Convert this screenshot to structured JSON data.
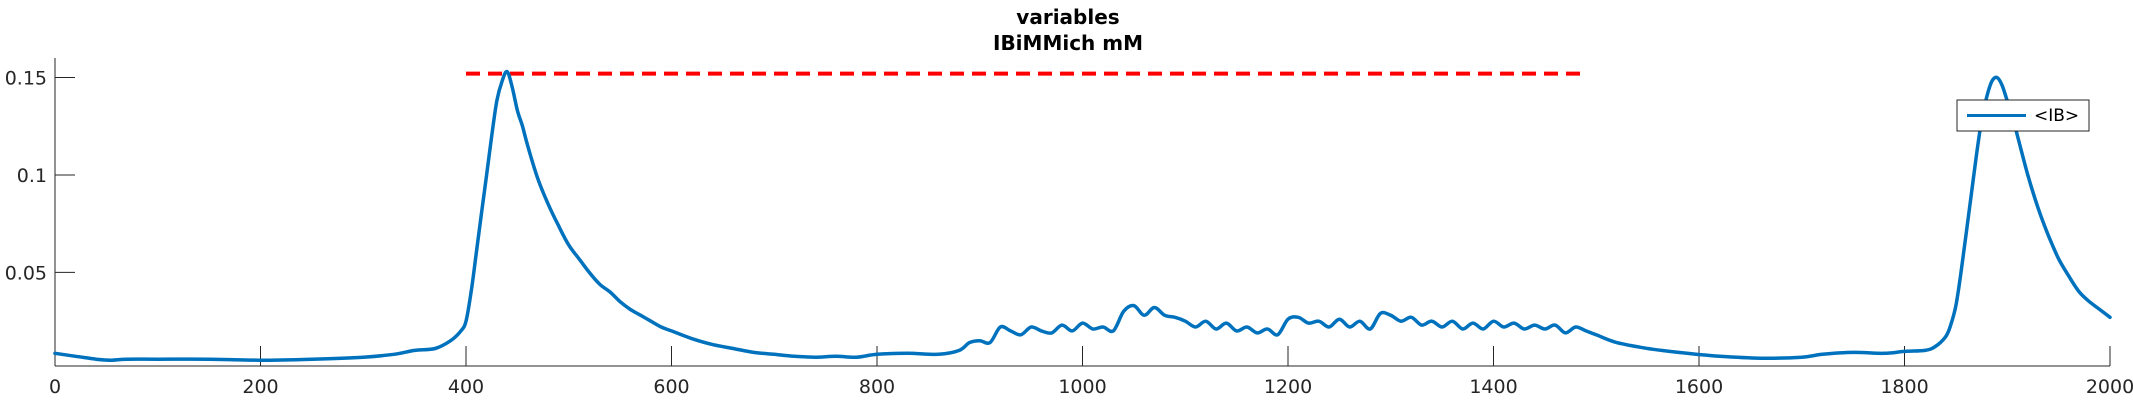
{
  "chart_data": {
    "type": "line",
    "title": [
      "variables",
      "IBiMMich mM"
    ],
    "xlabel": "",
    "ylabel": "",
    "xlim": [
      0,
      2000
    ],
    "ylim": [
      0.002,
      0.16
    ],
    "xticks": [
      0,
      200,
      400,
      600,
      800,
      1000,
      1200,
      1400,
      1600,
      1800,
      2000
    ],
    "yticks": [
      0.05,
      0.1,
      0.15
    ],
    "ytick_labels": [
      "0.05",
      "0.1",
      "0.15"
    ],
    "grid": false,
    "legend": {
      "location": "top-right",
      "entries": [
        "<IB>"
      ]
    },
    "colors": {
      "series": "#0072BD",
      "reference": "#FF0000",
      "axis": "#262626"
    },
    "reference_line": {
      "y": 0.152,
      "x": [
        400,
        1490
      ],
      "style": "dashed"
    },
    "series": [
      {
        "name": "<IB>",
        "x": [
          0,
          20,
          40,
          55,
          70,
          100,
          150,
          200,
          250,
          300,
          330,
          350,
          370,
          385,
          395,
          400,
          405,
          410,
          415,
          420,
          425,
          430,
          435,
          440,
          445,
          450,
          455,
          460,
          470,
          480,
          490,
          500,
          510,
          520,
          530,
          540,
          550,
          560,
          570,
          580,
          590,
          600,
          620,
          640,
          660,
          680,
          700,
          720,
          740,
          760,
          780,
          800,
          830,
          860,
          880,
          890,
          900,
          910,
          920,
          930,
          940,
          950,
          960,
          970,
          980,
          990,
          1000,
          1010,
          1020,
          1030,
          1040,
          1050,
          1060,
          1070,
          1080,
          1090,
          1100,
          1110,
          1120,
          1130,
          1140,
          1150,
          1160,
          1170,
          1180,
          1190,
          1200,
          1210,
          1220,
          1230,
          1240,
          1250,
          1260,
          1270,
          1280,
          1290,
          1300,
          1310,
          1320,
          1330,
          1340,
          1350,
          1360,
          1370,
          1380,
          1390,
          1400,
          1410,
          1420,
          1430,
          1440,
          1450,
          1460,
          1470,
          1480,
          1490,
          1500,
          1520,
          1550,
          1580,
          1620,
          1660,
          1700,
          1720,
          1750,
          1780,
          1800,
          1820,
          1830,
          1840,
          1845,
          1850,
          1855,
          1860,
          1865,
          1870,
          1875,
          1880,
          1885,
          1890,
          1895,
          1900,
          1905,
          1910,
          1920,
          1930,
          1940,
          1950,
          1960,
          1970,
          1980,
          1990,
          2000
        ],
        "values": [
          0.0085,
          0.007,
          0.0055,
          0.005,
          0.0055,
          0.0055,
          0.0055,
          0.005,
          0.0055,
          0.0065,
          0.008,
          0.01,
          0.011,
          0.015,
          0.02,
          0.025,
          0.04,
          0.06,
          0.08,
          0.1,
          0.12,
          0.138,
          0.148,
          0.153,
          0.145,
          0.133,
          0.125,
          0.115,
          0.098,
          0.085,
          0.074,
          0.064,
          0.057,
          0.05,
          0.044,
          0.04,
          0.035,
          0.031,
          0.028,
          0.025,
          0.022,
          0.02,
          0.016,
          0.013,
          0.011,
          0.009,
          0.008,
          0.007,
          0.0065,
          0.007,
          0.0065,
          0.008,
          0.0085,
          0.008,
          0.01,
          0.014,
          0.015,
          0.014,
          0.022,
          0.02,
          0.018,
          0.022,
          0.02,
          0.019,
          0.023,
          0.02,
          0.024,
          0.021,
          0.022,
          0.02,
          0.03,
          0.033,
          0.028,
          0.032,
          0.028,
          0.027,
          0.025,
          0.022,
          0.025,
          0.021,
          0.024,
          0.02,
          0.022,
          0.019,
          0.021,
          0.018,
          0.026,
          0.027,
          0.024,
          0.025,
          0.022,
          0.026,
          0.022,
          0.025,
          0.021,
          0.029,
          0.028,
          0.025,
          0.027,
          0.023,
          0.025,
          0.022,
          0.025,
          0.021,
          0.024,
          0.021,
          0.025,
          0.022,
          0.024,
          0.021,
          0.023,
          0.021,
          0.023,
          0.019,
          0.022,
          0.02,
          0.018,
          0.014,
          0.011,
          0.009,
          0.007,
          0.006,
          0.0065,
          0.008,
          0.009,
          0.0085,
          0.0095,
          0.01,
          0.012,
          0.017,
          0.023,
          0.033,
          0.05,
          0.07,
          0.09,
          0.11,
          0.128,
          0.14,
          0.148,
          0.15,
          0.146,
          0.138,
          0.13,
          0.12,
          0.1,
          0.083,
          0.069,
          0.057,
          0.048,
          0.04,
          0.035,
          0.031,
          0.027
        ]
      }
    ]
  }
}
